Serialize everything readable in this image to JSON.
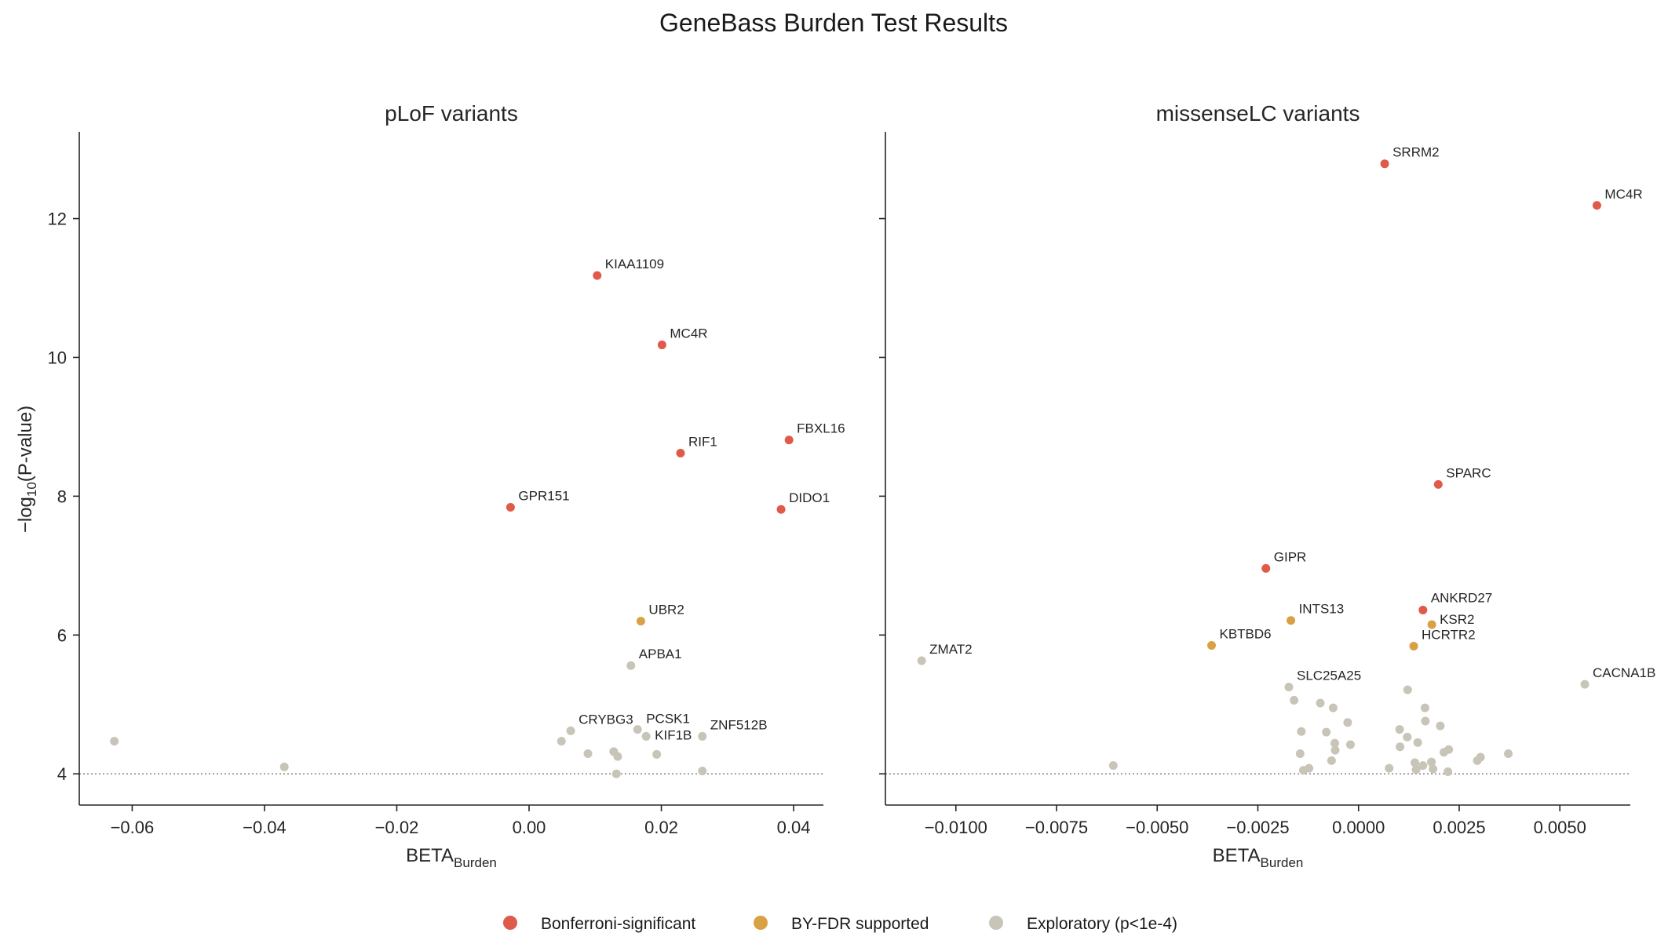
{
  "figure": {
    "title": "GeneBass Burden Test Results"
  },
  "colors": {
    "Bonferroni-significant": "#e05a4a",
    "BY-FDR supported": "#d9a044",
    "Exploratory (p<1e-4)": "#c8c4b8",
    "axis": "#262626",
    "threshold": "#777777"
  },
  "legend": {
    "placement": "bottom-center",
    "items": [
      {
        "label": "Bonferroni-significant",
        "marker": "filled-circle"
      },
      {
        "label": "BY-FDR supported",
        "marker": "filled-circle"
      },
      {
        "label": "Exploratory (p<1e-4)",
        "marker": "filled-circle"
      }
    ]
  },
  "chart_data": [
    {
      "type": "scatter",
      "title": "pLoF variants",
      "xlabel": {
        "main": "BETA",
        "subscript": "Burden"
      },
      "ylabel": {
        "prefix": "−log",
        "subscript": "10",
        "suffix": "(P-value)"
      },
      "xlim": [
        -0.068,
        0.0445
      ],
      "ylim": [
        3.55,
        13.25
      ],
      "xticks": [
        -0.06,
        -0.04,
        -0.02,
        0.0,
        0.02,
        0.04
      ],
      "xtick_labels": [
        "−0.06",
        "−0.04",
        "−0.02",
        "0.00",
        "0.02",
        "0.04"
      ],
      "yticks": [
        4,
        6,
        8,
        10,
        12
      ],
      "ytick_labels": [
        "4",
        "6",
        "8",
        "10",
        "12"
      ],
      "threshold_y": 4,
      "grid": false,
      "points": [
        {
          "x": 0.0103,
          "y": 11.18,
          "group": "Bonferroni-significant",
          "label": "KIAA1109"
        },
        {
          "x": 0.0201,
          "y": 10.18,
          "group": "Bonferroni-significant",
          "label": "MC4R"
        },
        {
          "x": 0.0393,
          "y": 8.81,
          "group": "Bonferroni-significant",
          "label": "FBXL16"
        },
        {
          "x": 0.0229,
          "y": 8.62,
          "group": "Bonferroni-significant",
          "label": "RIF1"
        },
        {
          "x": -0.0028,
          "y": 7.84,
          "group": "Bonferroni-significant",
          "label": "GPR151"
        },
        {
          "x": 0.0381,
          "y": 7.81,
          "group": "Bonferroni-significant",
          "label": "DIDO1"
        },
        {
          "x": 0.0169,
          "y": 6.2,
          "group": "BY-FDR supported",
          "label": "UBR2"
        },
        {
          "x": 0.0154,
          "y": 5.56,
          "group": "Exploratory (p<1e-4)",
          "label": "APBA1"
        },
        {
          "x": 0.0063,
          "y": 4.62,
          "group": "Exploratory (p<1e-4)",
          "label": "CRYBG3"
        },
        {
          "x": 0.0164,
          "y": 4.64,
          "group": "Exploratory (p<1e-4)",
          "label": "PCSK1"
        },
        {
          "x": 0.0177,
          "y": 4.54,
          "group": "Exploratory (p<1e-4)",
          "label": "KIF1B"
        },
        {
          "x": 0.0262,
          "y": 4.54,
          "group": "Exploratory (p<1e-4)",
          "label": "ZNF512B"
        },
        {
          "x": -0.0627,
          "y": 4.47,
          "group": "Exploratory (p<1e-4)",
          "label": ""
        },
        {
          "x": -0.037,
          "y": 4.1,
          "group": "Exploratory (p<1e-4)",
          "label": ""
        },
        {
          "x": 0.0049,
          "y": 4.47,
          "group": "Exploratory (p<1e-4)",
          "label": ""
        },
        {
          "x": 0.0089,
          "y": 4.29,
          "group": "Exploratory (p<1e-4)",
          "label": ""
        },
        {
          "x": 0.0128,
          "y": 4.32,
          "group": "Exploratory (p<1e-4)",
          "label": ""
        },
        {
          "x": 0.0134,
          "y": 4.25,
          "group": "Exploratory (p<1e-4)",
          "label": ""
        },
        {
          "x": 0.0193,
          "y": 4.28,
          "group": "Exploratory (p<1e-4)",
          "label": ""
        },
        {
          "x": 0.0132,
          "y": 4.0,
          "group": "Exploratory (p<1e-4)",
          "label": ""
        },
        {
          "x": 0.0262,
          "y": 4.04,
          "group": "Exploratory (p<1e-4)",
          "label": ""
        }
      ]
    },
    {
      "type": "scatter",
      "title": "missenseLC variants",
      "xlabel": {
        "main": "BETA",
        "subscript": "Burden"
      },
      "xlim": [
        -0.01175,
        0.00675
      ],
      "ylim": [
        3.55,
        13.25
      ],
      "xticks": [
        -0.01,
        -0.0075,
        -0.005,
        -0.0025,
        0.0,
        0.0025,
        0.005
      ],
      "xtick_labels": [
        "−0.0100",
        "−0.0075",
        "−0.0050",
        "−0.0025",
        "0.0000",
        "0.0025",
        "0.0050"
      ],
      "yticks": [
        4,
        6,
        8,
        10,
        12
      ],
      "ytick_labels": [],
      "threshold_y": 4,
      "grid": false,
      "points": [
        {
          "x": 0.00065,
          "y": 12.79,
          "group": "Bonferroni-significant",
          "label": "SRRM2"
        },
        {
          "x": 0.00592,
          "y": 12.19,
          "group": "Bonferroni-significant",
          "label": "MC4R"
        },
        {
          "x": 0.00198,
          "y": 8.17,
          "group": "Bonferroni-significant",
          "label": "SPARC"
        },
        {
          "x": -0.0023,
          "y": 6.96,
          "group": "Bonferroni-significant",
          "label": "GIPR"
        },
        {
          "x": 0.0016,
          "y": 6.36,
          "group": "Bonferroni-significant",
          "label": "ANKRD27"
        },
        {
          "x": -0.00168,
          "y": 6.21,
          "group": "BY-FDR supported",
          "label": "INTS13"
        },
        {
          "x": 0.00182,
          "y": 6.15,
          "group": "BY-FDR supported",
          "label": "KSR2"
        },
        {
          "x": -0.00365,
          "y": 5.85,
          "group": "BY-FDR supported",
          "label": "KBTBD6"
        },
        {
          "x": 0.00137,
          "y": 5.84,
          "group": "BY-FDR supported",
          "label": "HCRTR2"
        },
        {
          "x": -0.01085,
          "y": 5.63,
          "group": "Exploratory (p<1e-4)",
          "label": "ZMAT2"
        },
        {
          "x": 0.00562,
          "y": 5.29,
          "group": "Exploratory (p<1e-4)",
          "label": "CACNA1B"
        },
        {
          "x": -0.00173,
          "y": 5.25,
          "group": "Exploratory (p<1e-4)",
          "label": "SLC25A25"
        },
        {
          "x": -0.00609,
          "y": 4.12,
          "group": "Exploratory (p<1e-4)",
          "label": ""
        },
        {
          "x": -0.0016,
          "y": 5.06,
          "group": "Exploratory (p<1e-4)",
          "label": ""
        },
        {
          "x": -0.00095,
          "y": 5.02,
          "group": "Exploratory (p<1e-4)",
          "label": ""
        },
        {
          "x": -0.00063,
          "y": 4.95,
          "group": "Exploratory (p<1e-4)",
          "label": ""
        },
        {
          "x": -0.00027,
          "y": 4.74,
          "group": "Exploratory (p<1e-4)",
          "label": ""
        },
        {
          "x": -0.00142,
          "y": 4.61,
          "group": "Exploratory (p<1e-4)",
          "label": ""
        },
        {
          "x": -0.0008,
          "y": 4.6,
          "group": "Exploratory (p<1e-4)",
          "label": ""
        },
        {
          "x": -0.00059,
          "y": 4.44,
          "group": "Exploratory (p<1e-4)",
          "label": ""
        },
        {
          "x": -0.0002,
          "y": 4.42,
          "group": "Exploratory (p<1e-4)",
          "label": ""
        },
        {
          "x": -0.00058,
          "y": 4.34,
          "group": "Exploratory (p<1e-4)",
          "label": ""
        },
        {
          "x": -0.00145,
          "y": 4.29,
          "group": "Exploratory (p<1e-4)",
          "label": ""
        },
        {
          "x": -0.00067,
          "y": 4.19,
          "group": "Exploratory (p<1e-4)",
          "label": ""
        },
        {
          "x": -0.00123,
          "y": 4.08,
          "group": "Exploratory (p<1e-4)",
          "label": ""
        },
        {
          "x": -0.00137,
          "y": 4.05,
          "group": "Exploratory (p<1e-4)",
          "label": ""
        },
        {
          "x": 0.00122,
          "y": 5.21,
          "group": "Exploratory (p<1e-4)",
          "label": ""
        },
        {
          "x": 0.00165,
          "y": 4.95,
          "group": "Exploratory (p<1e-4)",
          "label": ""
        },
        {
          "x": 0.00166,
          "y": 4.76,
          "group": "Exploratory (p<1e-4)",
          "label": ""
        },
        {
          "x": 0.00203,
          "y": 4.69,
          "group": "Exploratory (p<1e-4)",
          "label": ""
        },
        {
          "x": 0.00102,
          "y": 4.64,
          "group": "Exploratory (p<1e-4)",
          "label": ""
        },
        {
          "x": 0.00121,
          "y": 4.53,
          "group": "Exploratory (p<1e-4)",
          "label": ""
        },
        {
          "x": 0.00147,
          "y": 4.45,
          "group": "Exploratory (p<1e-4)",
          "label": ""
        },
        {
          "x": 0.00103,
          "y": 4.39,
          "group": "Exploratory (p<1e-4)",
          "label": ""
        },
        {
          "x": 0.00224,
          "y": 4.35,
          "group": "Exploratory (p<1e-4)",
          "label": ""
        },
        {
          "x": 0.00212,
          "y": 4.31,
          "group": "Exploratory (p<1e-4)",
          "label": ""
        },
        {
          "x": 0.00372,
          "y": 4.29,
          "group": "Exploratory (p<1e-4)",
          "label": ""
        },
        {
          "x": 0.00303,
          "y": 4.24,
          "group": "Exploratory (p<1e-4)",
          "label": ""
        },
        {
          "x": 0.00295,
          "y": 4.19,
          "group": "Exploratory (p<1e-4)",
          "label": ""
        },
        {
          "x": 0.00181,
          "y": 4.17,
          "group": "Exploratory (p<1e-4)",
          "label": ""
        },
        {
          "x": 0.0014,
          "y": 4.16,
          "group": "Exploratory (p<1e-4)",
          "label": ""
        },
        {
          "x": 0.0016,
          "y": 4.12,
          "group": "Exploratory (p<1e-4)",
          "label": ""
        },
        {
          "x": 0.00076,
          "y": 4.08,
          "group": "Exploratory (p<1e-4)",
          "label": ""
        },
        {
          "x": 0.00185,
          "y": 4.07,
          "group": "Exploratory (p<1e-4)",
          "label": ""
        },
        {
          "x": 0.00143,
          "y": 4.06,
          "group": "Exploratory (p<1e-4)",
          "label": ""
        },
        {
          "x": 0.00222,
          "y": 4.03,
          "group": "Exploratory (p<1e-4)",
          "label": ""
        }
      ]
    }
  ]
}
